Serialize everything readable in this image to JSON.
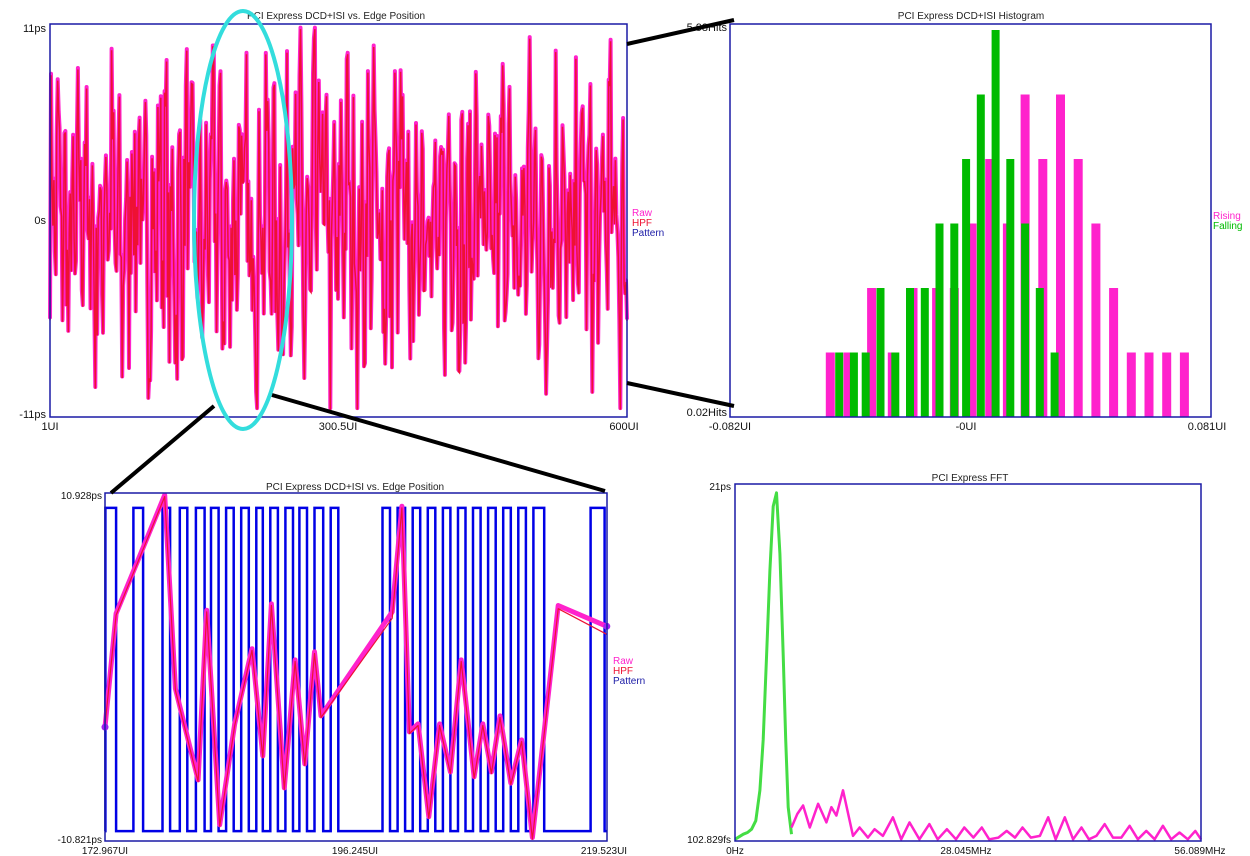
{
  "colors": {
    "pattern": "#0000e6",
    "raw": "#ff22cc",
    "hpf": "#ee1133",
    "rising": "#ff22cc",
    "falling": "#00bb00",
    "fft_green": "#44dd44",
    "fft_magenta": "#ff22cc",
    "frame": "#1a1aa6",
    "highlight": "#33dddd",
    "connector": "#000000"
  },
  "chart_data": [
    {
      "id": "edge_main",
      "type": "line",
      "title": "PCI Express DCD+ISI vs. Edge Position",
      "xlim": [
        1,
        600
      ],
      "ylim": [
        -11,
        11
      ],
      "x_ticks": [
        "1UI",
        "300.5UI",
        "600UI"
      ],
      "y_ticks": [
        "11ps",
        "0s",
        "-11ps"
      ],
      "legend": [
        "Raw",
        "HPF",
        "Pattern"
      ],
      "grid": false,
      "series": [
        {
          "name": "Pattern",
          "type": "square_wave",
          "high": 10.5,
          "low": -10.5,
          "transitions": 90
        },
        {
          "name": "Raw",
          "type": "jitter_trace",
          "points": 600,
          "range": [
            -10.5,
            10.8
          ]
        },
        {
          "name": "HPF",
          "type": "jitter_trace",
          "points": 600,
          "range": [
            -10.5,
            10.8
          ]
        }
      ]
    },
    {
      "id": "histogram",
      "type": "bar",
      "title": "PCI Express DCD+ISI Histogram",
      "xlim": [
        -0.082,
        0.081
      ],
      "ylim": [
        0.02,
        5.98
      ],
      "x_ticks": [
        "-0.082UI",
        "-0UI",
        "0.081UI"
      ],
      "y_ticks": [
        "5.98Hits",
        "0.02Hits"
      ],
      "legend": [
        "Rising",
        "Falling"
      ],
      "grid": false,
      "series": [
        {
          "name": "Rising",
          "x": [
            -0.048,
            -0.042,
            -0.034,
            -0.027,
            -0.02,
            -0.012,
            -0.006,
            0.0,
            0.006,
            0.012,
            0.018,
            0.024,
            0.03,
            0.036,
            0.042,
            0.048,
            0.054,
            0.06,
            0.066,
            0.072
          ],
          "values": [
            1,
            1,
            2,
            1,
            2,
            2,
            2,
            3,
            4,
            3,
            5,
            4,
            5,
            4,
            3,
            2,
            1,
            1,
            1,
            1
          ]
        },
        {
          "name": "Falling",
          "x": [
            -0.045,
            -0.04,
            -0.036,
            -0.031,
            -0.026,
            -0.021,
            -0.016,
            -0.011,
            -0.006,
            -0.002,
            0.003,
            0.008,
            0.013,
            0.018,
            0.023,
            0.028
          ],
          "values": [
            1,
            1,
            1,
            2,
            1,
            2,
            2,
            3,
            3,
            4,
            5,
            6,
            4,
            3,
            2,
            1
          ]
        }
      ]
    },
    {
      "id": "edge_zoom",
      "type": "line",
      "title": "PCI Express DCD+ISI vs. Edge Position",
      "xlim": [
        172.967,
        219.523
      ],
      "ylim": [
        -10.821,
        10.928
      ],
      "x_ticks": [
        "172.967UI",
        "196.245UI",
        "219.523UI"
      ],
      "y_ticks": [
        "10.928ps",
        "-10.821ps"
      ],
      "legend": [
        "Raw",
        "HPF",
        "Pattern"
      ],
      "grid": false,
      "series": [
        {
          "name": "Raw",
          "x": [
            172.97,
            174.0,
            178.5,
            179.5,
            181.6,
            182.4,
            183.6,
            185.0,
            186.6,
            187.6,
            188.4,
            189.6,
            190.6,
            191.5,
            192.4,
            193.0,
            199.6,
            200.5,
            201.2,
            202.0,
            203.0,
            204.0,
            205.0,
            206.0,
            207.2,
            208.0,
            208.8,
            209.6,
            210.6,
            211.6,
            212.6,
            215.0,
            219.5
          ],
          "values": [
            -3.7,
            3.4,
            10.8,
            -1.3,
            -7.0,
            3.6,
            -9.8,
            -3.5,
            1.2,
            -5.5,
            4.0,
            -7.5,
            0.5,
            -6.0,
            1.0,
            -3.0,
            3.5,
            10.1,
            -4.0,
            -3.5,
            -9.3,
            -3.5,
            -6.5,
            0.5,
            -6.8,
            -3.5,
            -6.5,
            -3.0,
            -7.2,
            -4.5,
            -10.6,
            3.9,
            2.6
          ]
        },
        {
          "name": "HPF",
          "x": [
            172.97,
            174.0,
            178.5,
            179.5,
            181.6,
            182.4,
            183.6,
            185.0,
            186.6,
            187.6,
            188.4,
            189.6,
            190.6,
            191.5,
            192.4,
            193.0,
            199.6,
            200.5,
            201.2,
            202.0,
            203.0,
            204.0,
            205.0,
            206.0,
            207.2,
            208.0,
            208.8,
            209.6,
            210.6,
            211.6,
            212.6,
            215.0,
            219.5
          ],
          "values": [
            -3.6,
            3.3,
            10.7,
            -1.4,
            -7.1,
            3.5,
            -9.9,
            -3.6,
            1.1,
            -5.6,
            3.9,
            -7.6,
            0.4,
            -6.1,
            0.9,
            -3.1,
            3.1,
            10.0,
            -4.1,
            -3.6,
            -9.4,
            -3.6,
            -6.6,
            0.4,
            -6.9,
            -3.6,
            -6.6,
            -3.1,
            -7.3,
            -4.6,
            -10.7,
            3.7,
            2.1
          ]
        },
        {
          "name": "Pattern",
          "type": "square_wave",
          "high": 10.0,
          "low": -10.2
        }
      ]
    },
    {
      "id": "fft",
      "type": "line",
      "title": "PCI Express FFT",
      "xlim": [
        0,
        56.089
      ],
      "x_ticks": [
        "0Hz",
        "28.045MHz",
        "56.089MHz"
      ],
      "y_ticks": [
        "21ps",
        "102.829fs"
      ],
      "grid": false,
      "series": [
        {
          "name": "",
          "x": [
            0.0,
            1.0,
            1.5,
            2.0,
            2.5,
            3.0,
            3.4,
            3.8,
            4.2,
            4.6,
            5.0,
            5.4,
            5.8,
            6.1,
            6.4,
            6.8
          ],
          "values": [
            0.1,
            0.4,
            0.5,
            0.7,
            1.2,
            3.0,
            6.0,
            11.0,
            16.0,
            19.8,
            20.6,
            17.0,
            11.0,
            6.0,
            2.0,
            0.4
          ]
        },
        {
          "name": "",
          "x": [
            6.8,
            7.5,
            8.2,
            9.0,
            10.0,
            11.0,
            11.6,
            12.2,
            13.0,
            14.2,
            15.0,
            16.0,
            16.8,
            17.8,
            19.0,
            20.0,
            21.0,
            22.2,
            23.4,
            24.4,
            25.5,
            26.6,
            27.6,
            28.7,
            29.7,
            30.6,
            31.7,
            32.7,
            33.7,
            34.6,
            35.6,
            36.7,
            37.7,
            38.6,
            39.7,
            40.7,
            41.7,
            42.6,
            43.5,
            44.5,
            45.5,
            46.5,
            47.5,
            48.5,
            49.5,
            50.5,
            51.5,
            52.5,
            53.5,
            54.5,
            55.4,
            56.089
          ],
          "values": [
            0.8,
            1.6,
            2.1,
            0.8,
            2.2,
            1.1,
            2.0,
            1.5,
            3.0,
            0.3,
            0.8,
            0.2,
            0.7,
            0.3,
            1.4,
            0.1,
            1.1,
            0.1,
            1.0,
            0.1,
            0.7,
            0.1,
            0.8,
            0.2,
            0.8,
            0.1,
            0.2,
            0.6,
            0.2,
            0.8,
            0.2,
            0.3,
            1.4,
            0.1,
            1.4,
            0.1,
            0.8,
            0.1,
            0.3,
            1.0,
            0.2,
            0.2,
            0.9,
            0.1,
            0.6,
            0.1,
            0.9,
            0.1,
            0.5,
            0.1,
            0.6,
            0.1
          ]
        }
      ]
    }
  ]
}
